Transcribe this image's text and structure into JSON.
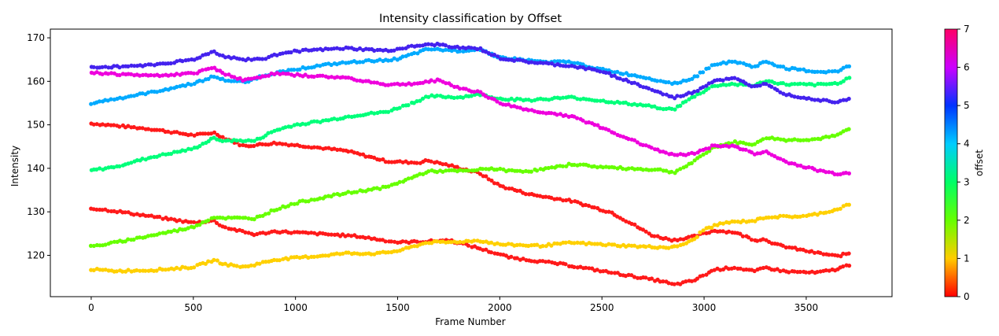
{
  "chart_data": {
    "type": "scatter",
    "title": "Intensity classification by Offset",
    "xlabel": "Frame Number",
    "ylabel": "Intensity",
    "xlim": [
      -200,
      3920
    ],
    "ylim": [
      110.5,
      172
    ],
    "xticks": [
      0,
      500,
      1000,
      1500,
      2000,
      2500,
      3000,
      3500
    ],
    "yticks": [
      120,
      130,
      140,
      150,
      160,
      170
    ],
    "grid": false,
    "colorbar": {
      "label": "offset",
      "range": [
        0,
        7
      ],
      "ticks": [
        0,
        1,
        2,
        3,
        4,
        5,
        6,
        7
      ],
      "colormap": "hsv",
      "stops": [
        "#ff0000",
        "#ffcc00",
        "#66ff00",
        "#00ff66",
        "#00ccff",
        "#0033ff",
        "#cc00ff",
        "#ff0066"
      ]
    },
    "series": [
      {
        "offset": 0.1,
        "color": "#ff1a1a",
        "x": [
          0,
          100,
          300,
          500,
          600,
          650,
          750,
          900,
          1050,
          1250,
          1450,
          1600,
          1650,
          1750,
          1900,
          2000,
          2150,
          2350,
          2550,
          2750,
          2850,
          2950,
          3050,
          3150,
          3250,
          3300,
          3350,
          3500,
          3650,
          3720
        ],
        "y": [
          150.3,
          149.9,
          149,
          147.6,
          148.2,
          147,
          145.1,
          145.8,
          145.1,
          144,
          141.6,
          141.3,
          141.8,
          140.7,
          138.9,
          136,
          134,
          132.5,
          129.8,
          124.5,
          123.5,
          124.3,
          125.7,
          125.3,
          123.5,
          123.7,
          122.5,
          121,
          119.8,
          120.6
        ]
      },
      {
        "offset": 0.15,
        "color": "#ff1a1a",
        "x": [
          0,
          100,
          300,
          500,
          600,
          650,
          800,
          900,
          1100,
          1300,
          1500,
          1650,
          1750,
          1900,
          2050,
          2300,
          2550,
          2800,
          2850,
          2950,
          3050,
          3150,
          3250,
          3300,
          3400,
          3550,
          3650,
          3720
        ],
        "y": [
          130.8,
          130.3,
          128.9,
          127.5,
          128,
          126.5,
          124.8,
          125.5,
          125,
          124.4,
          123,
          123.2,
          123.5,
          121.6,
          119.5,
          118,
          116,
          114,
          113.2,
          114.2,
          116.7,
          117.2,
          116.3,
          117.2,
          116.3,
          116,
          116.8,
          118
        ]
      },
      {
        "offset": 1.0,
        "color": "#ffd000",
        "x": [
          0,
          100,
          300,
          500,
          550,
          600,
          650,
          750,
          900,
          1100,
          1250,
          1400,
          1500,
          1650,
          1750,
          1900,
          2000,
          2200,
          2350,
          2500,
          2700,
          2850,
          2950,
          3000,
          3100,
          3250,
          3300,
          3500,
          3650,
          3720
        ],
        "y": [
          116.8,
          116.4,
          116.6,
          117.3,
          118.1,
          118.9,
          118,
          117.3,
          119,
          119.8,
          120.5,
          120.4,
          121,
          123,
          123,
          123.4,
          122.5,
          122.2,
          122.9,
          122.5,
          122,
          121.8,
          123.5,
          126,
          127.5,
          128,
          128.8,
          129,
          130.5,
          132
        ]
      },
      {
        "offset": 2.0,
        "color": "#66ff00",
        "x": [
          0,
          100,
          300,
          500,
          600,
          650,
          800,
          900,
          1000,
          1100,
          1250,
          1450,
          1550,
          1650,
          1750,
          1850,
          1950,
          2050,
          2150,
          2300,
          2350,
          2500,
          2700,
          2800,
          2850,
          2950,
          3050,
          3150,
          3250,
          3300,
          3400,
          3550,
          3650,
          3720
        ],
        "y": [
          122,
          122.8,
          124.6,
          126.5,
          128.8,
          128.6,
          128.5,
          130.5,
          132,
          133,
          134.3,
          135.7,
          137.5,
          139.3,
          139.4,
          139.4,
          140,
          139.4,
          139.4,
          140.4,
          141,
          140.3,
          139.8,
          139.6,
          139,
          141.5,
          145,
          146,
          145.5,
          147.1,
          146.5,
          146.7,
          147.5,
          149.5
        ]
      },
      {
        "offset": 2.8,
        "color": "#00ff7a",
        "x": [
          0,
          100,
          300,
          500,
          600,
          650,
          800,
          900,
          1000,
          1150,
          1300,
          1450,
          1600,
          1650,
          1800,
          1900,
          2000,
          2150,
          2350,
          2500,
          2700,
          2850,
          2950,
          3050,
          3150,
          3250,
          3300,
          3400,
          3550,
          3650,
          3720
        ],
        "y": [
          139.5,
          140.2,
          142.6,
          144.5,
          146.9,
          146.4,
          146.3,
          148.7,
          150,
          151,
          152.2,
          153,
          155.5,
          156.6,
          156.3,
          157,
          156,
          155.7,
          156.3,
          155.5,
          154.5,
          153.5,
          156.5,
          159,
          159.4,
          159,
          160.1,
          159.3,
          159.2,
          159.5,
          161
        ]
      },
      {
        "offset": 3.9,
        "color": "#00aaff",
        "x": [
          0,
          100,
          300,
          500,
          600,
          650,
          750,
          850,
          1000,
          1150,
          1300,
          1500,
          1650,
          1800,
          1900,
          2000,
          2200,
          2350,
          2500,
          2700,
          2850,
          2950,
          3050,
          3150,
          3250,
          3300,
          3400,
          3550,
          3650,
          3720
        ],
        "y": [
          155,
          155.8,
          157.5,
          159.5,
          161.1,
          160.3,
          159.8,
          161.4,
          162.8,
          163.8,
          164.5,
          165.1,
          167.4,
          167,
          167.4,
          165.5,
          164.5,
          164.4,
          162.7,
          161,
          159.5,
          160.8,
          164,
          164.5,
          163.3,
          164.6,
          163,
          162.2,
          162.2,
          163.8
        ]
      },
      {
        "offset": 4.9,
        "color": "#4422ee",
        "x": [
          0,
          100,
          300,
          500,
          600,
          650,
          750,
          850,
          950,
          1100,
          1250,
          1450,
          1600,
          1700,
          1800,
          1900,
          2000,
          2150,
          2350,
          2500,
          2700,
          2850,
          2950,
          3050,
          3150,
          3250,
          3300,
          3400,
          3550,
          3650,
          3720
        ],
        "y": [
          163.3,
          163.3,
          163.8,
          165,
          166.9,
          165.7,
          165,
          165.2,
          166.8,
          167.2,
          167.6,
          167,
          168.2,
          168.5,
          167.7,
          167.5,
          165.3,
          164.4,
          163.5,
          162.3,
          158.8,
          156.2,
          157.5,
          160.2,
          160.6,
          158.7,
          159.7,
          157,
          155.8,
          155.3,
          156.2
        ]
      },
      {
        "offset": 6.1,
        "color": "#ee00dd",
        "x": [
          0,
          100,
          300,
          500,
          600,
          650,
          750,
          900,
          1050,
          1250,
          1450,
          1600,
          1700,
          1800,
          1900,
          2000,
          2150,
          2350,
          2500,
          2700,
          2850,
          2950,
          3050,
          3150,
          3250,
          3300,
          3400,
          3550,
          3650,
          3720
        ],
        "y": [
          162,
          161.7,
          161.3,
          161.8,
          163.2,
          161.8,
          160.2,
          161.8,
          161.3,
          160.8,
          159.2,
          159.5,
          160.3,
          158.5,
          157.5,
          155,
          153.3,
          152,
          149.3,
          145.5,
          143,
          143.4,
          145.3,
          145,
          143.4,
          143.8,
          141.5,
          139.6,
          138.7,
          139
        ]
      }
    ]
  }
}
